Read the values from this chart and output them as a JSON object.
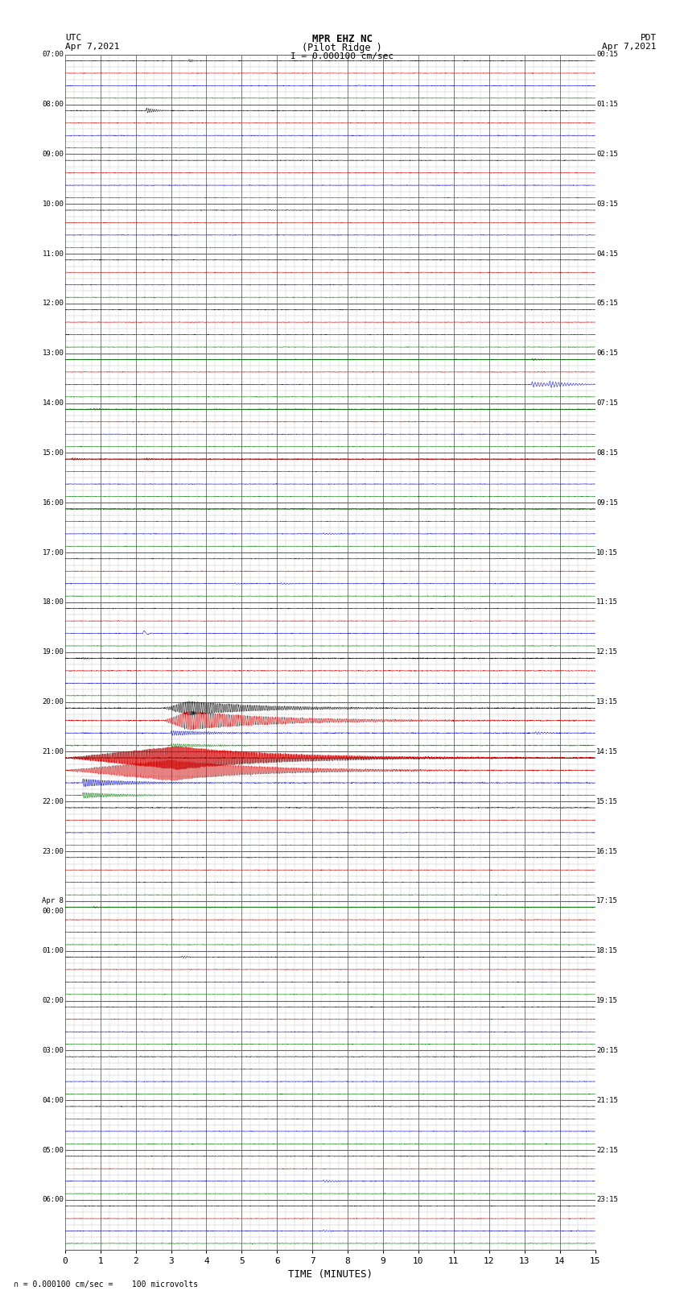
{
  "title_line1": "MPR EHZ NC",
  "title_line2": "(Pilot Ridge )",
  "title_line3": "I = 0.000100 cm/sec",
  "label_left_top": "UTC",
  "label_left_date": "Apr 7,2021",
  "label_right_top": "PDT",
  "label_right_date": "Apr 7,2021",
  "xlabel": "TIME (MINUTES)",
  "footnote": "= 0.000100 cm/sec =    100 microvolts",
  "bg_color": "#ffffff",
  "x_min": 0,
  "x_max": 15,
  "grid_color": "#888888",
  "minor_grid_color": "#cccccc",
  "n_major_rows": 35,
  "sub_rows": 3,
  "left_labels": [
    "07:00",
    "",
    "",
    "",
    "08:00",
    "",
    "",
    "",
    "09:00",
    "",
    "",
    "",
    "10:00",
    "",
    "",
    "",
    "11:00",
    "",
    "",
    "",
    "12:00",
    "",
    "",
    "",
    "13:00",
    "",
    "",
    "",
    "14:00",
    "",
    "",
    "",
    "15:00",
    "",
    "",
    "",
    "16:00",
    "",
    "",
    "",
    "17:00",
    "",
    "",
    "",
    "18:00",
    "",
    "",
    "",
    "19:00",
    "",
    "",
    "",
    "20:00",
    "",
    "",
    "",
    "21:00",
    "",
    "",
    "",
    "22:00",
    "",
    "",
    "",
    "23:00",
    "",
    "",
    "",
    "Apr 8\n00:00",
    "",
    "",
    "",
    "01:00",
    "",
    "",
    "",
    "02:00",
    "",
    "",
    "",
    "03:00",
    "",
    "",
    "",
    "04:00",
    "",
    "",
    "",
    "05:00",
    "",
    "",
    "",
    "06:00",
    "",
    "",
    ""
  ],
  "right_labels": [
    "00:15",
    "",
    "",
    "",
    "01:15",
    "",
    "",
    "",
    "02:15",
    "",
    "",
    "",
    "03:15",
    "",
    "",
    "",
    "04:15",
    "",
    "",
    "",
    "05:15",
    "",
    "",
    "",
    "06:15",
    "",
    "",
    "",
    "07:15",
    "",
    "",
    "",
    "08:15",
    "",
    "",
    "",
    "09:15",
    "",
    "",
    "",
    "10:15",
    "",
    "",
    "",
    "11:15",
    "",
    "",
    "",
    "12:15",
    "",
    "",
    "",
    "13:15",
    "",
    "",
    "",
    "14:15",
    "",
    "",
    "",
    "15:15",
    "",
    "",
    "",
    "16:15",
    "",
    "",
    "",
    "17:15",
    "",
    "",
    "",
    "18:15",
    "",
    "",
    "",
    "19:15",
    "",
    "",
    "",
    "20:15",
    "",
    "",
    "",
    "21:15",
    "",
    "",
    "",
    "22:15",
    "",
    "",
    "",
    "23:15",
    "",
    "",
    ""
  ],
  "noise_amp": 0.025,
  "trace_scale": 0.38
}
